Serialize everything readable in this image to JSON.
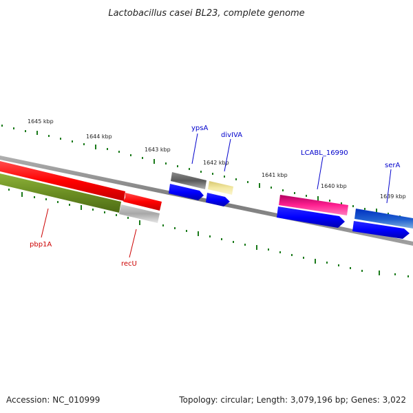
{
  "title": "Lactobacillus casei BL23, complete genome",
  "footer": {
    "accession": "Accession: NC_010999",
    "summary": "Topology: circular; Length: 3,079,196 bp; Genes: 3,022"
  },
  "ruler": {
    "ticks": [
      "1645 kbp",
      "1644 kbp",
      "1643 kbp",
      "1642 kbp",
      "1641 kbp",
      "1640 kbp",
      "1639 kbp"
    ]
  },
  "genes": [
    {
      "name": "pbp1A",
      "color": "#cc0000"
    },
    {
      "name": "recU",
      "color": "#cc0000"
    },
    {
      "name": "ypsA",
      "color": "#0000cc"
    },
    {
      "name": "divIVA",
      "color": "#0000cc"
    },
    {
      "name": "LCABL_16990",
      "color": "#0000cc"
    },
    {
      "name": "serA",
      "color": "#0000cc"
    }
  ],
  "colors": {
    "backbone": "#888888",
    "red_track": "#ff0000",
    "olive_track": "#6b8e23",
    "gray_feature": "#666666",
    "yellow_feature": "#f0e68c",
    "pink_feature": "#e0117f",
    "blue_feature": "#0000ff",
    "gc_dash": "#1a7a1a"
  }
}
